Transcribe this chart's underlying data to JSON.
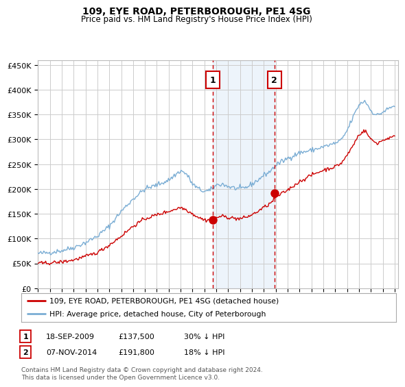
{
  "title": "109, EYE ROAD, PETERBOROUGH, PE1 4SG",
  "subtitle": "Price paid vs. HM Land Registry's House Price Index (HPI)",
  "ylabel_ticks": [
    "£0",
    "£50K",
    "£100K",
    "£150K",
    "£200K",
    "£250K",
    "£300K",
    "£350K",
    "£400K",
    "£450K"
  ],
  "ytick_values": [
    0,
    50000,
    100000,
    150000,
    200000,
    250000,
    300000,
    350000,
    400000,
    450000
  ],
  "ylim": [
    0,
    460000
  ],
  "xlim_start": 1995.0,
  "xlim_end": 2025.3,
  "sale1_date": 2009.72,
  "sale1_price": 137500,
  "sale2_date": 2014.87,
  "sale2_price": 191800,
  "legend_red": "109, EYE ROAD, PETERBOROUGH, PE1 4SG (detached house)",
  "legend_blue": "HPI: Average price, detached house, City of Peterborough",
  "sale1_col1": "18-SEP-2009",
  "sale1_col2": "£137,500",
  "sale1_col3": "30% ↓ HPI",
  "sale2_col1": "07-NOV-2014",
  "sale2_col2": "£191,800",
  "sale2_col3": "18% ↓ HPI",
  "footnote": "Contains HM Land Registry data © Crown copyright and database right 2024.\nThis data is licensed under the Open Government Licence v3.0.",
  "background_color": "#ffffff",
  "grid_color": "#cccccc",
  "red_line_color": "#cc0000",
  "blue_line_color": "#7aadd4",
  "shade_color": "#cce0f5",
  "box_edge_color": "#cc0000",
  "hpi_anchors": [
    [
      1995,
      70000
    ],
    [
      1996,
      72000
    ],
    [
      1997,
      76000
    ],
    [
      1998,
      82000
    ],
    [
      1999,
      92000
    ],
    [
      2000,
      105000
    ],
    [
      2001,
      125000
    ],
    [
      2002,
      155000
    ],
    [
      2003,
      180000
    ],
    [
      2004,
      200000
    ],
    [
      2005,
      208000
    ],
    [
      2006,
      218000
    ],
    [
      2007,
      237000
    ],
    [
      2007.5,
      230000
    ],
    [
      2008,
      210000
    ],
    [
      2008.5,
      200000
    ],
    [
      2009,
      195000
    ],
    [
      2009.5,
      197000
    ],
    [
      2010,
      208000
    ],
    [
      2010.5,
      210000
    ],
    [
      2011,
      205000
    ],
    [
      2011.5,
      202000
    ],
    [
      2012,
      200000
    ],
    [
      2012.5,
      203000
    ],
    [
      2013,
      210000
    ],
    [
      2013.5,
      218000
    ],
    [
      2014,
      228000
    ],
    [
      2014.5,
      235000
    ],
    [
      2015,
      248000
    ],
    [
      2016,
      262000
    ],
    [
      2017,
      273000
    ],
    [
      2018,
      278000
    ],
    [
      2019,
      285000
    ],
    [
      2020,
      292000
    ],
    [
      2020.5,
      298000
    ],
    [
      2021,
      318000
    ],
    [
      2021.5,
      345000
    ],
    [
      2022,
      370000
    ],
    [
      2022.5,
      378000
    ],
    [
      2023,
      358000
    ],
    [
      2023.5,
      348000
    ],
    [
      2024,
      355000
    ],
    [
      2024.5,
      362000
    ],
    [
      2025,
      368000
    ]
  ],
  "red_anchors": [
    [
      1995,
      50000
    ],
    [
      1996,
      51000
    ],
    [
      1997,
      53000
    ],
    [
      1998,
      57000
    ],
    [
      1999,
      64000
    ],
    [
      2000,
      72000
    ],
    [
      2001,
      87000
    ],
    [
      2002,
      105000
    ],
    [
      2003,
      125000
    ],
    [
      2004,
      140000
    ],
    [
      2005,
      148000
    ],
    [
      2006,
      155000
    ],
    [
      2007,
      163000
    ],
    [
      2007.5,
      158000
    ],
    [
      2008,
      150000
    ],
    [
      2008.5,
      143000
    ],
    [
      2009,
      137500
    ],
    [
      2009.5,
      138000
    ],
    [
      2010,
      143000
    ],
    [
      2010.5,
      145000
    ],
    [
      2011,
      143000
    ],
    [
      2011.5,
      141000
    ],
    [
      2012,
      140000
    ],
    [
      2012.5,
      143000
    ],
    [
      2013,
      148000
    ],
    [
      2013.5,
      155000
    ],
    [
      2014,
      163000
    ],
    [
      2014.5,
      170000
    ],
    [
      2015,
      183000
    ],
    [
      2016,
      198000
    ],
    [
      2017,
      215000
    ],
    [
      2018,
      228000
    ],
    [
      2019,
      238000
    ],
    [
      2020,
      245000
    ],
    [
      2020.5,
      252000
    ],
    [
      2021,
      268000
    ],
    [
      2021.5,
      288000
    ],
    [
      2022,
      310000
    ],
    [
      2022.5,
      318000
    ],
    [
      2023,
      300000
    ],
    [
      2023.5,
      292000
    ],
    [
      2024,
      298000
    ],
    [
      2024.5,
      303000
    ],
    [
      2025,
      305000
    ]
  ]
}
